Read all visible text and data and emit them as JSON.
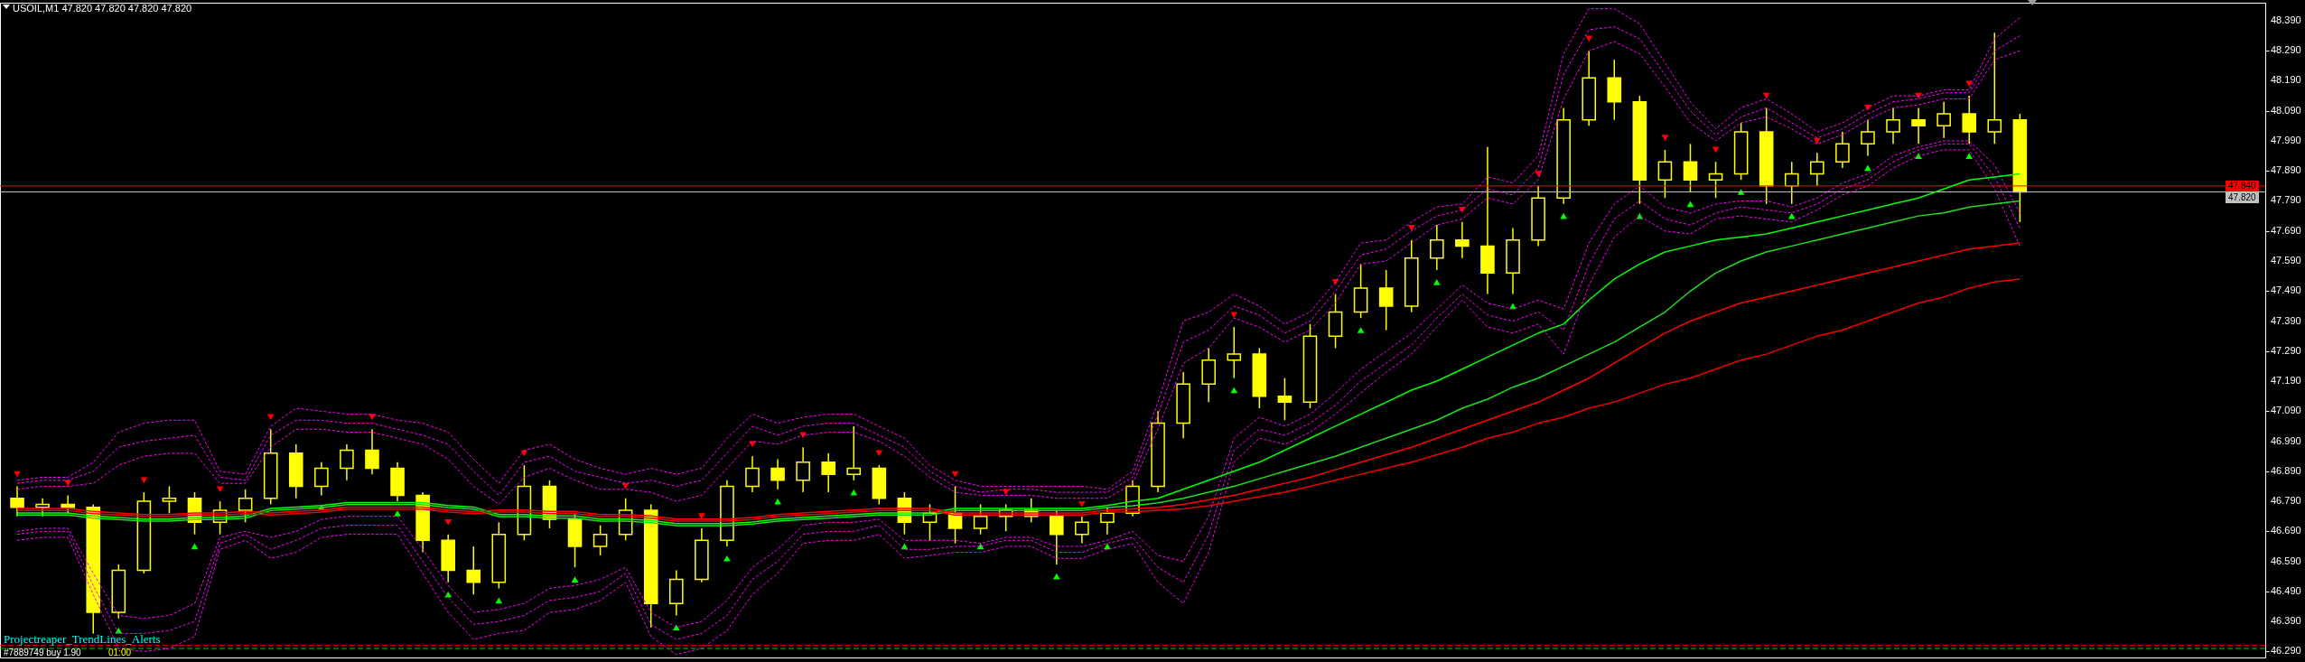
{
  "chart_data": {
    "type": "candlestick",
    "title": "USOIL,M1 47.820 47.820 47.820 47.820",
    "categories": [
      null,
      null,
      null,
      null,
      null,
      null,
      null,
      null,
      null,
      null,
      null,
      null,
      null,
      null,
      null,
      null,
      null,
      null,
      null,
      null,
      null,
      null,
      null,
      null,
      null,
      null,
      null,
      null,
      null,
      null,
      null,
      null,
      null,
      null,
      null,
      null,
      null,
      null,
      null,
      null,
      null,
      null,
      null,
      null,
      null,
      null,
      null,
      null,
      null,
      null,
      null,
      null,
      null,
      null,
      null,
      null,
      null,
      null,
      null,
      null,
      null,
      null,
      null,
      null,
      null,
      null,
      null,
      null,
      null,
      null,
      null,
      null,
      null,
      null,
      null,
      null,
      null,
      null,
      null,
      null,
      null,
      null,
      null,
      null,
      null,
      null,
      null,
      null,
      null
    ],
    "color": "#ffff00",
    "ohlc": [
      [
        46.8,
        46.84,
        46.74,
        46.77
      ],
      [
        46.77,
        46.8,
        46.74,
        46.78
      ],
      [
        46.78,
        46.81,
        46.75,
        46.77
      ],
      [
        46.77,
        46.78,
        46.35,
        46.42
      ],
      [
        46.42,
        46.58,
        46.4,
        46.56
      ],
      [
        46.56,
        46.82,
        46.55,
        46.79
      ],
      [
        46.79,
        46.84,
        46.75,
        46.8
      ],
      [
        46.8,
        46.82,
        46.68,
        46.72
      ],
      [
        46.72,
        46.79,
        46.68,
        46.76
      ],
      [
        46.76,
        46.83,
        46.72,
        46.8
      ],
      [
        46.8,
        47.03,
        46.78,
        46.95
      ],
      [
        46.95,
        46.98,
        46.8,
        46.84
      ],
      [
        46.84,
        46.92,
        46.81,
        46.9
      ],
      [
        46.9,
        46.98,
        46.86,
        46.96
      ],
      [
        46.96,
        47.03,
        46.88,
        46.9
      ],
      [
        46.9,
        46.92,
        46.79,
        46.81
      ],
      [
        46.81,
        46.82,
        46.62,
        46.66
      ],
      [
        46.66,
        46.68,
        46.52,
        46.56
      ],
      [
        46.56,
        46.64,
        46.48,
        46.52
      ],
      [
        46.52,
        46.72,
        46.5,
        46.68
      ],
      [
        46.68,
        46.91,
        46.66,
        46.84
      ],
      [
        46.84,
        46.86,
        46.7,
        46.73
      ],
      [
        46.73,
        46.75,
        46.57,
        46.64
      ],
      [
        46.64,
        46.71,
        46.61,
        46.68
      ],
      [
        46.68,
        46.8,
        46.66,
        46.76
      ],
      [
        46.76,
        46.78,
        46.37,
        46.45
      ],
      [
        46.45,
        46.56,
        46.41,
        46.53
      ],
      [
        46.53,
        46.7,
        46.52,
        46.66
      ],
      [
        46.66,
        46.86,
        46.64,
        46.84
      ],
      [
        46.84,
        46.94,
        46.82,
        46.9
      ],
      [
        46.9,
        46.93,
        46.83,
        46.86
      ],
      [
        46.86,
        46.97,
        46.82,
        46.92
      ],
      [
        46.92,
        46.95,
        46.82,
        46.88
      ],
      [
        46.88,
        47.04,
        46.86,
        46.9
      ],
      [
        46.9,
        46.91,
        46.78,
        46.8
      ],
      [
        46.8,
        46.82,
        46.68,
        46.72
      ],
      [
        46.72,
        46.78,
        46.66,
        46.75
      ],
      [
        46.75,
        46.84,
        46.65,
        46.7
      ],
      [
        46.7,
        46.78,
        46.68,
        46.74
      ],
      [
        46.74,
        46.78,
        46.69,
        46.76
      ],
      [
        46.76,
        46.8,
        46.72,
        46.74
      ],
      [
        46.74,
        46.76,
        46.58,
        46.68
      ],
      [
        46.68,
        46.74,
        46.65,
        46.72
      ],
      [
        46.72,
        46.77,
        46.68,
        46.75
      ],
      [
        46.75,
        46.86,
        46.74,
        46.84
      ],
      [
        46.84,
        47.09,
        46.82,
        47.05
      ],
      [
        47.05,
        47.22,
        47.0,
        47.18
      ],
      [
        47.18,
        47.3,
        47.12,
        47.26
      ],
      [
        47.26,
        47.37,
        47.2,
        47.28
      ],
      [
        47.28,
        47.3,
        47.1,
        47.14
      ],
      [
        47.14,
        47.2,
        47.06,
        47.12
      ],
      [
        47.12,
        47.38,
        47.1,
        47.34
      ],
      [
        47.34,
        47.48,
        47.3,
        47.42
      ],
      [
        47.42,
        47.58,
        47.4,
        47.5
      ],
      [
        47.5,
        47.56,
        47.36,
        47.44
      ],
      [
        47.44,
        47.66,
        47.42,
        47.6
      ],
      [
        47.6,
        47.71,
        47.56,
        47.66
      ],
      [
        47.66,
        47.72,
        47.6,
        47.64
      ],
      [
        47.64,
        47.97,
        47.48,
        47.55
      ],
      [
        47.55,
        47.7,
        47.48,
        47.66
      ],
      [
        47.66,
        47.84,
        47.64,
        47.8
      ],
      [
        47.8,
        48.1,
        47.78,
        48.06
      ],
      [
        48.06,
        48.29,
        48.04,
        48.2
      ],
      [
        48.2,
        48.26,
        48.06,
        48.12
      ],
      [
        48.12,
        48.14,
        47.78,
        47.86
      ],
      [
        47.86,
        47.96,
        47.8,
        47.92
      ],
      [
        47.92,
        47.98,
        47.82,
        47.86
      ],
      [
        47.86,
        47.92,
        47.8,
        47.88
      ],
      [
        47.88,
        48.05,
        47.86,
        48.02
      ],
      [
        48.02,
        48.1,
        47.78,
        47.84
      ],
      [
        47.84,
        47.92,
        47.78,
        47.88
      ],
      [
        47.88,
        47.95,
        47.84,
        47.92
      ],
      [
        47.92,
        48.02,
        47.9,
        47.98
      ],
      [
        47.98,
        48.06,
        47.94,
        48.02
      ],
      [
        48.02,
        48.1,
        47.98,
        48.06
      ],
      [
        48.06,
        48.1,
        47.98,
        48.04
      ],
      [
        48.04,
        48.12,
        48.0,
        48.08
      ],
      [
        48.08,
        48.14,
        47.98,
        48.02
      ],
      [
        48.02,
        48.35,
        47.98,
        48.06
      ],
      [
        48.06,
        48.08,
        47.72,
        47.82
      ],
      null,
      null,
      null,
      null,
      null,
      null,
      null,
      null,
      null
    ],
    "series": [
      {
        "type": "line",
        "color": "#ff00ff",
        "line_style": "dotted",
        "values": [
          46.86,
          46.87,
          46.87,
          46.92,
          47.02,
          47.05,
          47.06,
          47.06,
          46.89,
          46.88,
          47.04,
          47.1,
          47.09,
          47.08,
          47.08,
          47.06,
          47.05,
          47.02,
          46.93,
          46.85,
          46.96,
          46.98,
          46.93,
          46.9,
          46.88,
          46.9,
          46.88,
          46.9,
          47.0,
          47.08,
          47.05,
          47.07,
          47.08,
          47.08,
          47.04,
          47.0,
          46.91,
          46.86,
          46.84,
          46.84,
          46.84,
          46.84,
          46.84,
          46.83,
          46.89,
          47.12,
          47.39,
          47.42,
          47.48,
          47.44,
          47.38,
          47.42,
          47.52,
          47.65,
          47.66,
          47.72,
          47.77,
          47.78,
          47.87,
          47.85,
          47.94,
          48.28,
          48.43,
          48.43,
          48.38,
          48.25,
          48.12,
          48.03,
          48.1,
          48.13,
          48.08,
          48.02,
          48.05,
          48.1,
          48.14,
          48.14,
          48.16,
          48.16,
          48.33,
          48.4,
          null,
          null,
          null,
          null,
          null,
          null,
          null,
          null,
          null
        ]
      },
      {
        "type": "line",
        "color": "#ff00ff",
        "line_style": "dotted",
        "values": [
          46.85,
          46.86,
          46.86,
          46.89,
          46.97,
          46.99,
          47.0,
          47.01,
          46.87,
          46.86,
          47.01,
          47.06,
          47.06,
          47.05,
          47.05,
          47.03,
          47.01,
          46.98,
          46.89,
          46.81,
          46.92,
          46.94,
          46.89,
          46.87,
          46.85,
          46.86,
          46.84,
          46.86,
          46.95,
          47.04,
          47.01,
          47.04,
          47.05,
          47.05,
          47.01,
          46.97,
          46.89,
          46.84,
          46.82,
          46.83,
          46.83,
          46.82,
          46.82,
          46.82,
          46.87,
          47.08,
          47.32,
          47.36,
          47.44,
          47.41,
          47.35,
          47.39,
          47.49,
          47.61,
          47.63,
          47.69,
          47.74,
          47.76,
          47.83,
          47.81,
          47.9,
          48.21,
          48.36,
          48.37,
          48.33,
          48.21,
          48.09,
          48.01,
          48.07,
          48.1,
          48.05,
          48.0,
          48.03,
          48.08,
          48.12,
          48.13,
          48.15,
          48.15,
          48.29,
          48.34,
          null,
          null,
          null,
          null,
          null,
          null,
          null,
          null,
          null
        ]
      },
      {
        "type": "line",
        "color": "#ff00ff",
        "line_style": "dotted",
        "values": [
          46.83,
          46.84,
          46.84,
          46.85,
          46.91,
          46.94,
          46.95,
          46.95,
          46.85,
          46.85,
          46.97,
          47.03,
          47.03,
          47.02,
          47.02,
          47.0,
          46.98,
          46.93,
          46.84,
          46.78,
          46.87,
          46.9,
          46.86,
          46.83,
          46.83,
          46.82,
          46.79,
          46.81,
          46.9,
          46.99,
          46.98,
          47.01,
          47.02,
          47.02,
          46.99,
          46.94,
          46.87,
          46.82,
          46.81,
          46.81,
          46.81,
          46.8,
          46.8,
          46.8,
          46.85,
          47.03,
          47.25,
          47.3,
          47.4,
          47.37,
          47.32,
          47.36,
          47.45,
          47.58,
          47.59,
          47.65,
          47.71,
          47.73,
          47.8,
          47.78,
          47.86,
          48.13,
          48.29,
          48.32,
          48.28,
          48.17,
          48.05,
          47.99,
          48.05,
          48.07,
          48.03,
          47.98,
          48.01,
          48.06,
          48.1,
          48.11,
          48.13,
          48.13,
          48.26,
          48.29,
          null,
          null,
          null,
          null,
          null,
          null,
          null,
          null,
          null
        ]
      },
      {
        "type": "line",
        "color": "#ff00ff",
        "line_style": "dotted",
        "values": [
          46.69,
          46.7,
          46.7,
          46.55,
          46.41,
          46.4,
          46.41,
          46.45,
          46.67,
          46.69,
          46.67,
          46.69,
          46.73,
          46.74,
          46.74,
          46.74,
          46.63,
          46.51,
          46.42,
          46.43,
          46.45,
          46.5,
          46.51,
          46.53,
          46.57,
          46.42,
          46.37,
          46.39,
          46.46,
          46.57,
          46.63,
          46.71,
          46.72,
          46.72,
          46.73,
          46.66,
          46.66,
          46.66,
          46.65,
          46.67,
          46.67,
          46.64,
          46.64,
          46.66,
          46.69,
          46.61,
          46.59,
          46.74,
          47.0,
          47.07,
          47.04,
          47.08,
          47.15,
          47.23,
          47.29,
          47.35,
          47.43,
          47.51,
          47.45,
          47.43,
          47.46,
          47.43,
          47.65,
          47.78,
          47.84,
          47.77,
          47.75,
          47.78,
          47.79,
          47.79,
          47.77,
          47.8,
          47.85,
          47.88,
          47.94,
          47.97,
          47.99,
          47.99,
          47.91,
          47.75,
          null,
          null,
          null,
          null,
          null,
          null,
          null,
          null,
          null
        ]
      },
      {
        "type": "line",
        "color": "#ff00ff",
        "line_style": "dotted",
        "values": [
          46.68,
          46.69,
          46.69,
          46.51,
          46.35,
          46.35,
          46.36,
          46.39,
          46.65,
          46.68,
          46.63,
          46.66,
          46.7,
          46.71,
          46.71,
          46.71,
          46.59,
          46.47,
          46.38,
          46.39,
          46.41,
          46.46,
          46.47,
          46.49,
          46.55,
          46.38,
          46.33,
          46.35,
          46.41,
          46.53,
          46.59,
          46.68,
          46.69,
          46.69,
          46.71,
          46.63,
          46.63,
          46.64,
          46.64,
          46.66,
          46.66,
          46.62,
          46.62,
          46.65,
          46.67,
          46.57,
          46.52,
          46.68,
          46.96,
          47.03,
          47.01,
          47.05,
          47.11,
          47.19,
          47.25,
          47.31,
          47.4,
          47.48,
          47.41,
          47.39,
          47.42,
          47.36,
          47.58,
          47.73,
          47.79,
          47.73,
          47.71,
          47.75,
          47.77,
          47.76,
          47.75,
          47.78,
          47.83,
          47.86,
          47.92,
          47.96,
          47.98,
          47.98,
          47.87,
          47.7,
          null,
          null,
          null,
          null,
          null,
          null,
          null,
          null,
          null
        ]
      },
      {
        "type": "line",
        "color": "#ff00ff",
        "line_style": "dotted",
        "values": [
          46.66,
          46.67,
          46.67,
          46.48,
          46.3,
          46.29,
          46.3,
          46.34,
          46.63,
          46.66,
          46.6,
          46.62,
          46.67,
          46.68,
          46.68,
          46.68,
          46.55,
          46.42,
          46.33,
          46.35,
          46.36,
          46.42,
          46.43,
          46.46,
          46.52,
          46.34,
          46.28,
          46.3,
          46.36,
          46.48,
          46.55,
          46.65,
          46.66,
          46.66,
          46.68,
          46.6,
          46.61,
          46.62,
          46.62,
          46.64,
          46.64,
          46.6,
          46.6,
          46.63,
          46.65,
          46.52,
          46.45,
          46.62,
          46.92,
          47.0,
          46.98,
          47.02,
          47.08,
          47.15,
          47.22,
          47.28,
          47.37,
          47.46,
          47.37,
          47.35,
          47.38,
          47.28,
          47.51,
          47.67,
          47.74,
          47.69,
          47.68,
          47.73,
          47.74,
          47.73,
          47.72,
          47.76,
          47.81,
          47.84,
          47.9,
          47.94,
          47.96,
          47.96,
          47.83,
          47.64,
          null,
          null,
          null,
          null,
          null,
          null,
          null,
          null,
          null
        ]
      },
      {
        "type": "line",
        "color": "#00ff00",
        "values": [
          46.751,
          46.751,
          46.751,
          46.741,
          46.736,
          46.731,
          46.731,
          46.736,
          46.736,
          46.741,
          46.766,
          46.771,
          46.776,
          46.786,
          46.786,
          46.786,
          46.786,
          46.776,
          46.771,
          46.746,
          46.746,
          46.741,
          46.741,
          46.731,
          46.731,
          46.726,
          46.716,
          46.716,
          46.716,
          46.721,
          46.731,
          46.736,
          46.741,
          46.746,
          46.751,
          46.751,
          46.751,
          46.766,
          46.766,
          46.766,
          46.766,
          46.766,
          46.766,
          46.776,
          46.79,
          46.8,
          46.83,
          46.86,
          46.89,
          46.92,
          46.96,
          47.0,
          47.04,
          47.08,
          47.12,
          47.16,
          47.19,
          47.23,
          47.27,
          47.31,
          47.35,
          47.38,
          47.46,
          47.53,
          47.58,
          47.62,
          47.64,
          47.66,
          47.67,
          47.68,
          47.7,
          47.72,
          47.74,
          47.76,
          47.78,
          47.8,
          47.83,
          47.86,
          47.87,
          47.88,
          null,
          null,
          null,
          null,
          null,
          null,
          null,
          null,
          null
        ]
      },
      {
        "type": "line",
        "color": "#22dd22",
        "values": [
          46.744,
          46.744,
          46.744,
          46.734,
          46.729,
          46.724,
          46.724,
          46.729,
          46.729,
          46.734,
          46.759,
          46.764,
          46.769,
          46.779,
          46.779,
          46.779,
          46.779,
          46.769,
          46.764,
          46.739,
          46.739,
          46.734,
          46.734,
          46.724,
          46.724,
          46.719,
          46.709,
          46.709,
          46.709,
          46.714,
          46.724,
          46.729,
          46.734,
          46.739,
          46.744,
          46.744,
          46.744,
          46.759,
          46.759,
          46.759,
          46.759,
          46.759,
          46.759,
          46.769,
          46.775,
          46.785,
          46.8,
          46.82,
          46.84,
          46.865,
          46.89,
          46.915,
          46.94,
          46.97,
          47.0,
          47.03,
          47.06,
          47.1,
          47.13,
          47.17,
          47.2,
          47.24,
          47.28,
          47.32,
          47.37,
          47.42,
          47.49,
          47.55,
          47.59,
          47.62,
          47.64,
          47.66,
          47.68,
          47.7,
          47.72,
          47.74,
          47.75,
          47.77,
          47.78,
          47.79,
          null,
          null,
          null,
          null,
          null,
          null,
          null,
          null,
          null
        ]
      },
      {
        "type": "line",
        "color": "#ff0000",
        "values": [
          46.766,
          46.766,
          46.766,
          46.756,
          46.751,
          46.746,
          46.746,
          46.751,
          46.751,
          46.756,
          46.751,
          46.756,
          46.761,
          46.771,
          46.771,
          46.771,
          46.771,
          46.761,
          46.756,
          46.761,
          46.761,
          46.756,
          46.756,
          46.746,
          46.746,
          46.741,
          46.731,
          46.731,
          46.731,
          46.736,
          46.746,
          46.751,
          46.756,
          46.761,
          46.766,
          46.766,
          46.766,
          46.751,
          46.751,
          46.751,
          46.751,
          46.751,
          46.751,
          46.761,
          46.765,
          46.77,
          46.78,
          46.795,
          46.81,
          46.83,
          46.85,
          46.87,
          46.895,
          46.92,
          46.945,
          46.97,
          47.0,
          47.03,
          47.06,
          47.09,
          47.12,
          47.16,
          47.2,
          47.25,
          47.3,
          47.35,
          47.39,
          47.42,
          47.45,
          47.47,
          47.49,
          47.51,
          47.53,
          47.55,
          47.57,
          47.59,
          47.61,
          47.63,
          47.64,
          47.65,
          null,
          null,
          null,
          null,
          null,
          null,
          null,
          null,
          null
        ]
      },
      {
        "type": "line",
        "color": "#ee0000",
        "values": [
          46.759,
          46.759,
          46.759,
          46.749,
          46.744,
          46.739,
          46.739,
          46.744,
          46.744,
          46.749,
          46.744,
          46.749,
          46.754,
          46.764,
          46.764,
          46.764,
          46.764,
          46.754,
          46.749,
          46.754,
          46.754,
          46.749,
          46.749,
          46.739,
          46.739,
          46.734,
          46.724,
          46.724,
          46.724,
          46.729,
          46.739,
          46.744,
          46.749,
          46.754,
          46.759,
          46.759,
          46.759,
          46.744,
          46.744,
          46.744,
          46.744,
          46.744,
          46.744,
          46.754,
          46.755,
          46.76,
          46.765,
          46.775,
          46.79,
          46.805,
          46.82,
          46.84,
          46.86,
          46.88,
          46.9,
          46.92,
          46.945,
          46.97,
          47.0,
          47.02,
          47.05,
          47.07,
          47.1,
          47.12,
          47.15,
          47.18,
          47.2,
          47.23,
          47.26,
          47.28,
          47.31,
          47.34,
          47.36,
          47.39,
          47.42,
          47.45,
          47.47,
          47.5,
          47.52,
          47.53,
          null,
          null,
          null,
          null,
          null,
          null,
          null,
          null,
          null
        ]
      },
      {
        "type": "scatter",
        "color": "#ff0000",
        "marker": "triangle",
        "values": [
          46.88,
          null,
          46.85,
          null,
          null,
          46.86,
          null,
          null,
          46.83,
          null,
          47.07,
          null,
          null,
          null,
          47.07,
          null,
          null,
          46.72,
          null,
          null,
          46.95,
          null,
          null,
          null,
          46.84,
          null,
          null,
          46.74,
          null,
          46.98,
          null,
          47.01,
          null,
          null,
          46.95,
          null,
          null,
          46.88,
          null,
          46.82,
          null,
          null,
          46.78,
          null,
          null,
          null,
          null,
          null,
          47.41,
          null,
          null,
          null,
          47.52,
          null,
          null,
          47.7,
          null,
          47.76,
          null,
          null,
          47.88,
          null,
          48.33,
          null,
          null,
          48.0,
          null,
          47.96,
          null,
          48.14,
          null,
          47.99,
          null,
          48.1,
          null,
          48.14,
          null,
          48.18,
          null,
          null,
          null,
          null,
          null,
          null,
          null,
          null,
          null,
          null,
          null
        ]
      },
      {
        "type": "scatter",
        "color": "#00ff00",
        "marker": "triangle",
        "values": [
          null,
          null,
          null,
          null,
          46.36,
          null,
          null,
          46.64,
          null,
          null,
          null,
          null,
          46.77,
          null,
          null,
          46.75,
          null,
          46.48,
          null,
          46.46,
          null,
          null,
          46.53,
          null,
          null,
          null,
          46.37,
          null,
          46.6,
          null,
          46.79,
          null,
          null,
          46.82,
          null,
          46.64,
          null,
          null,
          46.64,
          null,
          null,
          46.54,
          null,
          46.64,
          null,
          null,
          null,
          null,
          47.16,
          null,
          null,
          null,
          null,
          47.36,
          null,
          null,
          47.52,
          null,
          null,
          47.44,
          null,
          47.74,
          null,
          null,
          47.74,
          null,
          47.78,
          null,
          47.82,
          null,
          47.74,
          null,
          null,
          47.9,
          null,
          47.94,
          null,
          47.94,
          null,
          null,
          null,
          null,
          null,
          null,
          null,
          null,
          null,
          null,
          null
        ]
      }
    ],
    "ylim": [
      46.27,
      48.45
    ],
    "yticks": [
      {
        "value": 46.29,
        "label": "46.290"
      },
      {
        "value": 46.39,
        "label": "46.390"
      },
      {
        "value": 46.49,
        "label": "46.490"
      },
      {
        "value": 46.59,
        "label": "46.590"
      },
      {
        "value": 46.69,
        "label": "46.690"
      },
      {
        "value": 46.79,
        "label": "46.790"
      },
      {
        "value": 46.89,
        "label": "46.890"
      },
      {
        "value": 46.99,
        "label": "46.990"
      },
      {
        "value": 47.09,
        "label": "47.090"
      },
      {
        "value": 47.19,
        "label": "47.190"
      },
      {
        "value": 47.29,
        "label": "47.290"
      },
      {
        "value": 47.39,
        "label": "47.390"
      },
      {
        "value": 47.49,
        "label": "47.490"
      },
      {
        "value": 47.59,
        "label": "47.590"
      },
      {
        "value": 47.69,
        "label": "47.690"
      },
      {
        "value": 47.79,
        "label": "47.790"
      },
      {
        "value": 47.89,
        "label": "47.890"
      },
      {
        "value": 47.99,
        "label": "47.990"
      },
      {
        "value": 48.09,
        "label": "48.090"
      },
      {
        "value": 48.19,
        "label": "48.190"
      },
      {
        "value": 48.29,
        "label": "48.290"
      },
      {
        "value": 48.39,
        "label": "48.390"
      }
    ],
    "tick_labels": "y",
    "ref_lines": [
      {
        "axis": "y",
        "value": 47.84,
        "label": "47.840",
        "color": "#ff0000"
      },
      {
        "axis": "y",
        "value": 47.82,
        "label": "47.820",
        "color": "#c0c0c0"
      },
      {
        "axis": "y",
        "value": 46.31,
        "color": "#ff0000",
        "line_style": "dashed"
      },
      {
        "axis": "y",
        "value": 46.3,
        "color": "#00c000",
        "line_style": "dashed"
      }
    ],
    "annotations": [
      "Projectreaper_TrendLines_Alerts",
      "#7889749 buy 1.90",
      "01:00"
    ]
  }
}
